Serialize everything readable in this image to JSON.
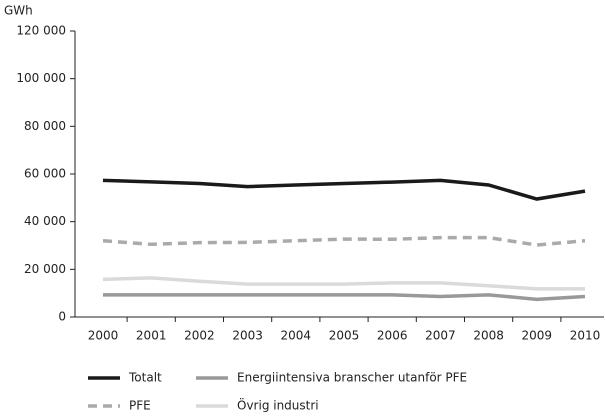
{
  "chart_data": {
    "type": "line",
    "y_label": "GWh",
    "x": [
      "2000",
      "2001",
      "2002",
      "2003",
      "2004",
      "2005",
      "2006",
      "2007",
      "2008",
      "2009",
      "2010"
    ],
    "series": [
      {
        "name": "Totalt",
        "color": "#1a1a1a",
        "line_style": "solid",
        "values": [
          57300,
          56700,
          56000,
          54700,
          55400,
          56000,
          56600,
          57300,
          55400,
          49500,
          52800
        ]
      },
      {
        "name": "Energiintensiva branscher utanför PFE",
        "color": "#999999",
        "line_style": "solid",
        "values": [
          9300,
          9300,
          9300,
          9300,
          9300,
          9300,
          9300,
          8600,
          9300,
          7400,
          8600
        ]
      },
      {
        "name": "PFE",
        "color": "#aaaaaa",
        "line_style": "dashed",
        "values": [
          32000,
          30500,
          31200,
          31300,
          32000,
          32700,
          32600,
          33300,
          33300,
          30200,
          32000
        ]
      },
      {
        "name": "Övrig industri",
        "color": "#dadada",
        "line_style": "solid",
        "values": [
          15800,
          16400,
          15000,
          13800,
          13800,
          13800,
          14300,
          14300,
          13100,
          11800,
          11800
        ]
      }
    ],
    "ylim": [
      0,
      120000
    ],
    "yticks": [
      0,
      {
        "value": 20000,
        "label": "20 000"
      },
      {
        "value": 40000,
        "label": "40 000"
      },
      {
        "value": 60000,
        "label": "60 000"
      },
      {
        "value": 80000,
        "label": "80 000"
      },
      {
        "value": 100000,
        "label": "100 000"
      },
      {
        "value": 120000,
        "label": "120 000"
      }
    ],
    "grid": false
  }
}
